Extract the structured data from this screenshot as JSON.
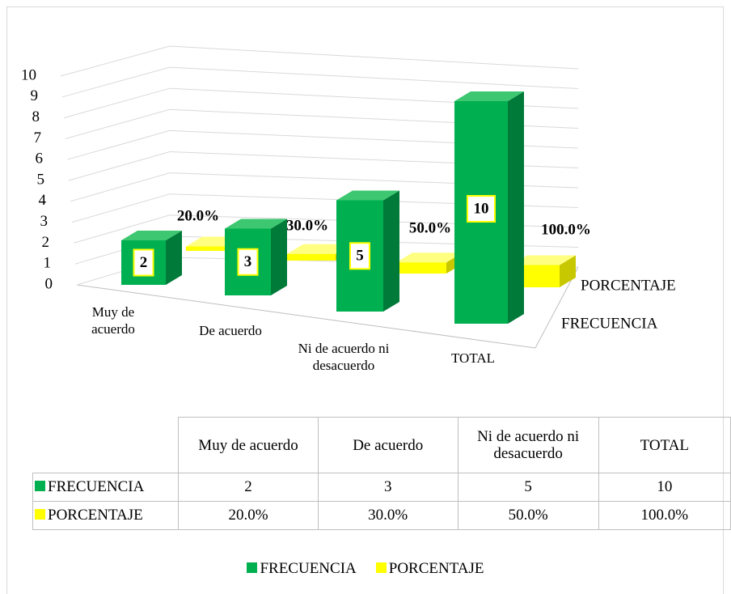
{
  "chart_data": {
    "type": "bar",
    "categories": [
      "Muy de acuerdo",
      "De acuerdo",
      "Ni de acuerdo ni desacuerdo",
      "TOTAL"
    ],
    "series": [
      {
        "name": "FRECUENCIA",
        "color": "#00b050",
        "values": [
          2,
          3,
          5,
          10
        ]
      },
      {
        "name": "PORCENTAJE",
        "color": "#ffff00",
        "values": [
          0.2,
          0.3,
          0.5,
          1.0
        ],
        "value_labels": [
          "20.0%",
          "30.0%",
          "50.0%",
          "100.0%"
        ]
      }
    ],
    "ylim": [
      0,
      10
    ],
    "yticks": [
      0,
      1,
      2,
      3,
      4,
      5,
      6,
      7,
      8,
      9,
      10
    ],
    "grid": true,
    "legend": "bottom"
  }
}
